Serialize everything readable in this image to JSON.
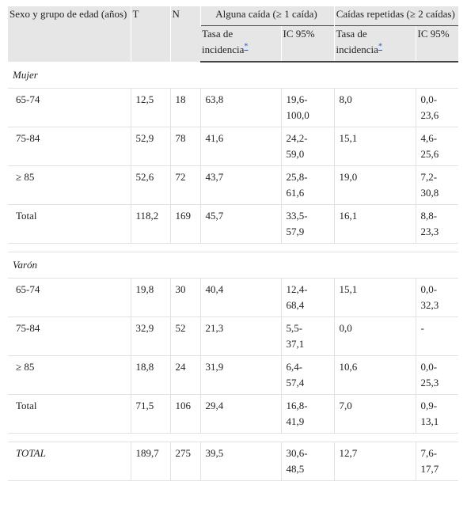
{
  "header": {
    "group": "Sexo y grupo de edad (años)",
    "t": "T",
    "n": "N",
    "any_fall": "Alguna caída (≥ 1 caída)",
    "repeated_falls": "Caídas repetidas (≥ 2 caídas)",
    "subheaders": [
      {
        "label": "Tasa de incidencia",
        "note": "*"
      },
      {
        "label": "IC 95%"
      },
      {
        "label": "Tasa de incidencia",
        "note": "*"
      },
      {
        "label": "IC 95%"
      }
    ]
  },
  "sections": [
    {
      "label": "Mujer",
      "rows": [
        [
          "65-74",
          "12,5",
          "18",
          "63,8",
          "19,6-100,0",
          "8,0",
          "0,0-23,6"
        ],
        [
          "75-84",
          "52,9",
          "78",
          "41,6",
          "24,2-59,0",
          "15,1",
          "4,6-25,6"
        ],
        [
          "≥ 85",
          "52,6",
          "72",
          "43,7",
          "25,8-61,6",
          "19,0",
          "7,2-30,8"
        ],
        [
          "Total",
          "118,2",
          "169",
          "45,7",
          "33,5-57,9",
          "16,1",
          "8,8-23,3"
        ]
      ]
    },
    {
      "label": "Varón",
      "rows": [
        [
          "65-74",
          "19,8",
          "30",
          "40,4",
          "12,4-68,4",
          "15,1",
          "0,0-32,3"
        ],
        [
          "75-84",
          "32,9",
          "52",
          "21,3",
          "5,5-37,1",
          "0,0",
          "-"
        ],
        [
          "≥ 85",
          "18,8",
          "24",
          "31,9",
          "6,4-57,4",
          "10,6",
          "0,0-25,3"
        ],
        [
          "Total",
          "71,5",
          "106",
          "29,4",
          "16,8-41,9",
          "7,0",
          "0,9-13,1"
        ]
      ]
    }
  ],
  "total": [
    "TOTAL",
    "189,7",
    "275",
    "39,5",
    "30,6-48,5",
    "12,7",
    "7,6-17,7"
  ]
}
